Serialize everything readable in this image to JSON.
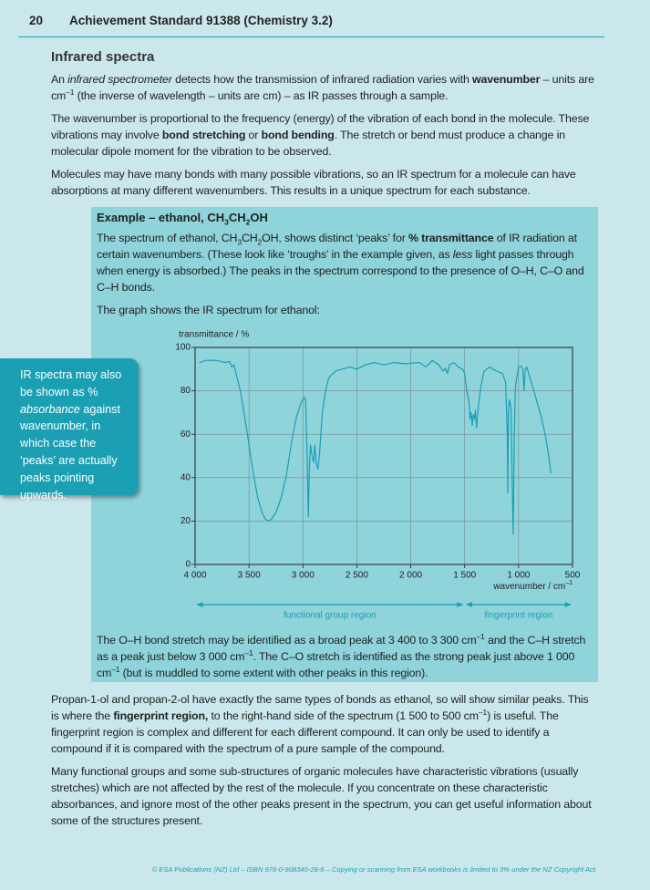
{
  "header": {
    "page": "20",
    "title": "Achievement Standard 91388 (Chemistry 3.2)"
  },
  "section_title": "Infrared spectra",
  "paragraphs": [
    [
      "An ",
      "infrared spectrometer",
      " detects how the transmission of infrared radiation varies with ",
      "wavenumber",
      " – units are cm",
      "–1",
      " (the inverse of wavelength – units are cm) – as IR passes through a sample."
    ],
    [
      "The wavenumber is proportional to the frequency (energy) of the vibration of each bond in the molecule. These vibrations may involve ",
      "bond stretching",
      " or ",
      "bond bending",
      ". The stretch or bend must produce a change in molecular dipole moment for the vibration to be observed."
    ],
    [
      "Molecules may have many bonds with many possible vibrations, so an IR spectrum for a molecule can have absorptions at many different wavenumbers. This results in a unique spectrum for each substance."
    ]
  ],
  "example": {
    "heading": [
      "Example – ethanol, CH",
      "3",
      "CH",
      "2",
      "OH"
    ],
    "paragraphs": [
      [
        "The spectrum of ethanol, CH",
        "3",
        "CH",
        "2",
        "OH, shows distinct ‘peaks’ for ",
        "% transmittance",
        " of IR radiation at certain wavenumbers. (These look like ‘troughs’ in the example given, as ",
        "less",
        " light passes through when energy is absorbed.) The peaks in the spectrum correspond to the presence of O–H, C–O and C–H bonds."
      ],
      [
        "The graph shows the IR spectrum for ethanol:"
      ]
    ],
    "after": [
      "The O–H bond stretch may be identified as a broad peak at 3 400 to 3 300 cm",
      "–1",
      " and the C–H stretch as a peak just below 3 000 cm",
      "–1",
      ". The C–O stretch is identified as the strong peak just above 1 000 cm",
      "–1",
      " (but is muddled to some extent with other peaks in this region)."
    ]
  },
  "chart_data": {
    "type": "line",
    "ylabel": "transmittance / %",
    "xlabel": "wavenumber / cm",
    "xlabel_sup": "–1",
    "xlim": [
      4000,
      500
    ],
    "xticks": [
      {
        "value": 4000,
        "label": "4 000"
      },
      {
        "value": 3500,
        "label": "3 500"
      },
      {
        "value": 3000,
        "label": "3 000"
      },
      {
        "value": 2500,
        "label": "2 500"
      },
      {
        "value": 2000,
        "label": "2 000"
      },
      {
        "value": 1500,
        "label": "1 500"
      },
      {
        "value": 1000,
        "label": "1 000"
      },
      500
    ],
    "ylim": [
      0,
      100
    ],
    "yticks": [
      0,
      20,
      40,
      60,
      80,
      100
    ],
    "grid": true,
    "x": [
      3960,
      3900,
      3800,
      3720,
      3680,
      3660,
      3640,
      3620,
      3580,
      3540,
      3500,
      3460,
      3420,
      3380,
      3350,
      3320,
      3290,
      3250,
      3200,
      3150,
      3100,
      3060,
      3020,
      2990,
      2975,
      2960,
      2950,
      2940,
      2930,
      2915,
      2900,
      2890,
      2875,
      2860,
      2845,
      2820,
      2790,
      2760,
      2700,
      2640,
      2560,
      2500,
      2420,
      2340,
      2250,
      2160,
      2050,
      1920,
      1860,
      1800,
      1740,
      1700,
      1680,
      1660,
      1640,
      1600,
      1560,
      1520,
      1500,
      1480,
      1460,
      1450,
      1440,
      1430,
      1420,
      1410,
      1400,
      1390,
      1370,
      1350,
      1320,
      1270,
      1240,
      1200,
      1150,
      1120,
      1105,
      1100,
      1095,
      1085,
      1070,
      1060,
      1050,
      1040,
      1030,
      1010,
      1000,
      980,
      960,
      950,
      940,
      925,
      900,
      870,
      830,
      790,
      750,
      720,
      700
    ],
    "series": [
      {
        "color": "#1b9fb3",
        "values": [
          93,
          94,
          94,
          93,
          93.5,
          91,
          92,
          88,
          80,
          68,
          55,
          42,
          31,
          24,
          21,
          20,
          21,
          24,
          31,
          42,
          58,
          68,
          74,
          77,
          76,
          48,
          22,
          45,
          55,
          50,
          47,
          55,
          46,
          44,
          52,
          70,
          80,
          86,
          89,
          90,
          91,
          90,
          92,
          93,
          92,
          93,
          92.5,
          93,
          91,
          94,
          92,
          89,
          90.5,
          88,
          92,
          93,
          91,
          90,
          88,
          80,
          75,
          67,
          70,
          64,
          69,
          67,
          71,
          63,
          74,
          82,
          89,
          91,
          90,
          89,
          88,
          84,
          60,
          33,
          70,
          76,
          72,
          40,
          14,
          58,
          82,
          88,
          91,
          91.5,
          90,
          80,
          89,
          91,
          87,
          82,
          75,
          68,
          59,
          50,
          42
        ]
      }
    ],
    "regions": [
      {
        "label": "functional group region",
        "from": 4000,
        "to": 1500
      },
      {
        "label": "fingerprint region",
        "from": 1500,
        "to": 500
      }
    ]
  },
  "side_note": [
    "IR spectra may also be shown as % ",
    "absorbance",
    " against wavenumber, in which case the ‘peaks’ are actually peaks pointing upwards."
  ],
  "closing": [
    [
      "Propan-1-ol and propan-2-ol have exactly the same types of bonds as ethanol, so will show similar peaks. This is where the ",
      "fingerprint region,",
      " to the right-hand side of the spectrum (1 500 to 500 cm",
      "–1",
      ") is useful. The fingerprint region is complex and different for each different compound. It can only be used to identify a compound if it is compared with the spectrum of a pure sample of the compound."
    ],
    [
      "Many functional groups and some sub-structures of organic molecules have characteristic vibrations (usually stretches) which are not affected by the rest of the molecule. If you concentrate on these characteristic absorbances, and ignore most of the other peaks present in the spectrum, you can get useful information about some of the structures present."
    ]
  ],
  "footer": "© ESA Publications (NZ) Ltd – ISBN 978-0-908340-28-6 – Copying or scanning from ESA workbooks is limited to 3% under the NZ Copyright Act."
}
